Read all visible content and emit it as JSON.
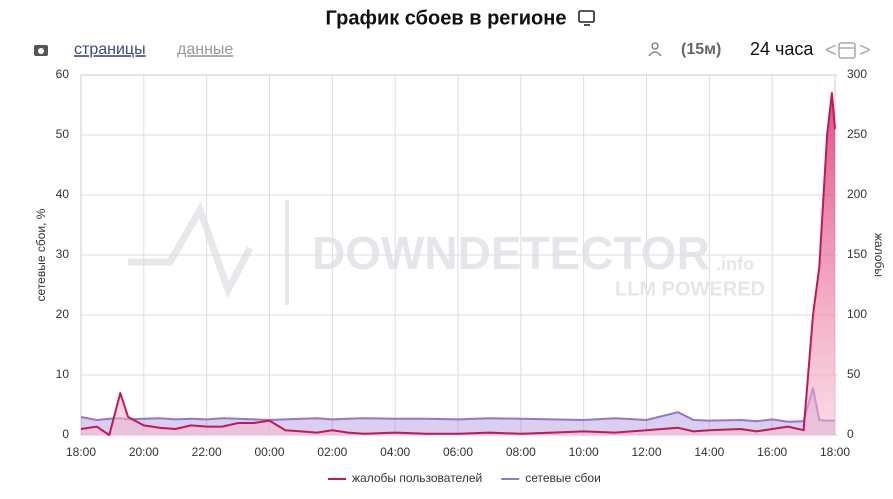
{
  "ui": {
    "tab_pages": "страницы",
    "tab_data": "данные",
    "interval": "(15м)",
    "range": "24 часа",
    "prev": "<",
    "next": ">"
  },
  "chart_data": {
    "type": "line",
    "title": "График сбоев в регионе",
    "ylabel": "сетевые сбои, %",
    "y2label": "жалобы",
    "watermark": "DOWNDETECTOR",
    "watermark_suffix": ".info",
    "watermark_sub": "LLM POWERED",
    "x": [
      0,
      0.5,
      0.9,
      1.25,
      1.5,
      2,
      2.5,
      3,
      3.5,
      4,
      4.5,
      5,
      5.5,
      6,
      6.5,
      7,
      7.5,
      8,
      8.5,
      9,
      10,
      11,
      12,
      13,
      14,
      15,
      16,
      17,
      18,
      19,
      19.5,
      20,
      21,
      21.5,
      22,
      22.5,
      23,
      23.3,
      23.5,
      23.75,
      23.9,
      24
    ],
    "xlim": [
      0,
      24
    ],
    "xticks": [
      {
        "value": 0,
        "label": "18:00"
      },
      {
        "value": 2,
        "label": "20:00"
      },
      {
        "value": 4,
        "label": "22:00"
      },
      {
        "value": 6,
        "label": "00:00"
      },
      {
        "value": 8,
        "label": "02:00"
      },
      {
        "value": 10,
        "label": "04:00"
      },
      {
        "value": 12,
        "label": "06:00"
      },
      {
        "value": 14,
        "label": "08:00"
      },
      {
        "value": 16,
        "label": "10:00"
      },
      {
        "value": 18,
        "label": "12:00"
      },
      {
        "value": 20,
        "label": "14:00"
      },
      {
        "value": 22,
        "label": "16:00"
      },
      {
        "value": 24,
        "label": "18:00"
      }
    ],
    "ylim": [
      0,
      60
    ],
    "yticks": [
      0,
      10,
      20,
      30,
      40,
      50,
      60
    ],
    "y2lim": [
      0,
      300
    ],
    "y2ticks": [
      0,
      50,
      100,
      150,
      200,
      250,
      300
    ],
    "grid": true,
    "series": [
      {
        "name": "жалобы пользователей",
        "color": "#c2185b",
        "axis": "y2",
        "values": [
          5,
          7,
          0,
          35,
          15,
          8,
          6,
          5,
          8,
          7,
          7,
          10,
          10,
          12,
          4,
          3,
          2,
          4,
          2,
          1,
          2,
          1,
          1,
          2,
          1,
          2,
          3,
          2,
          4,
          6,
          3,
          4,
          5,
          3,
          5,
          7,
          4,
          100,
          140,
          250,
          285,
          255
        ]
      },
      {
        "name": "сетевые сбои",
        "color": "#9575cd",
        "axis": "y",
        "values": [
          3,
          2.5,
          2.7,
          2.8,
          2.6,
          2.7,
          2.8,
          2.6,
          2.7,
          2.6,
          2.8,
          2.7,
          2.6,
          2.5,
          2.6,
          2.7,
          2.8,
          2.6,
          2.7,
          2.8,
          2.7,
          2.7,
          2.6,
          2.8,
          2.7,
          2.6,
          2.5,
          2.8,
          2.5,
          3.8,
          2.5,
          2.4,
          2.5,
          2.3,
          2.6,
          2.2,
          2.3,
          7.8,
          2.5,
          2.4,
          2.4,
          2.4
        ]
      }
    ]
  }
}
